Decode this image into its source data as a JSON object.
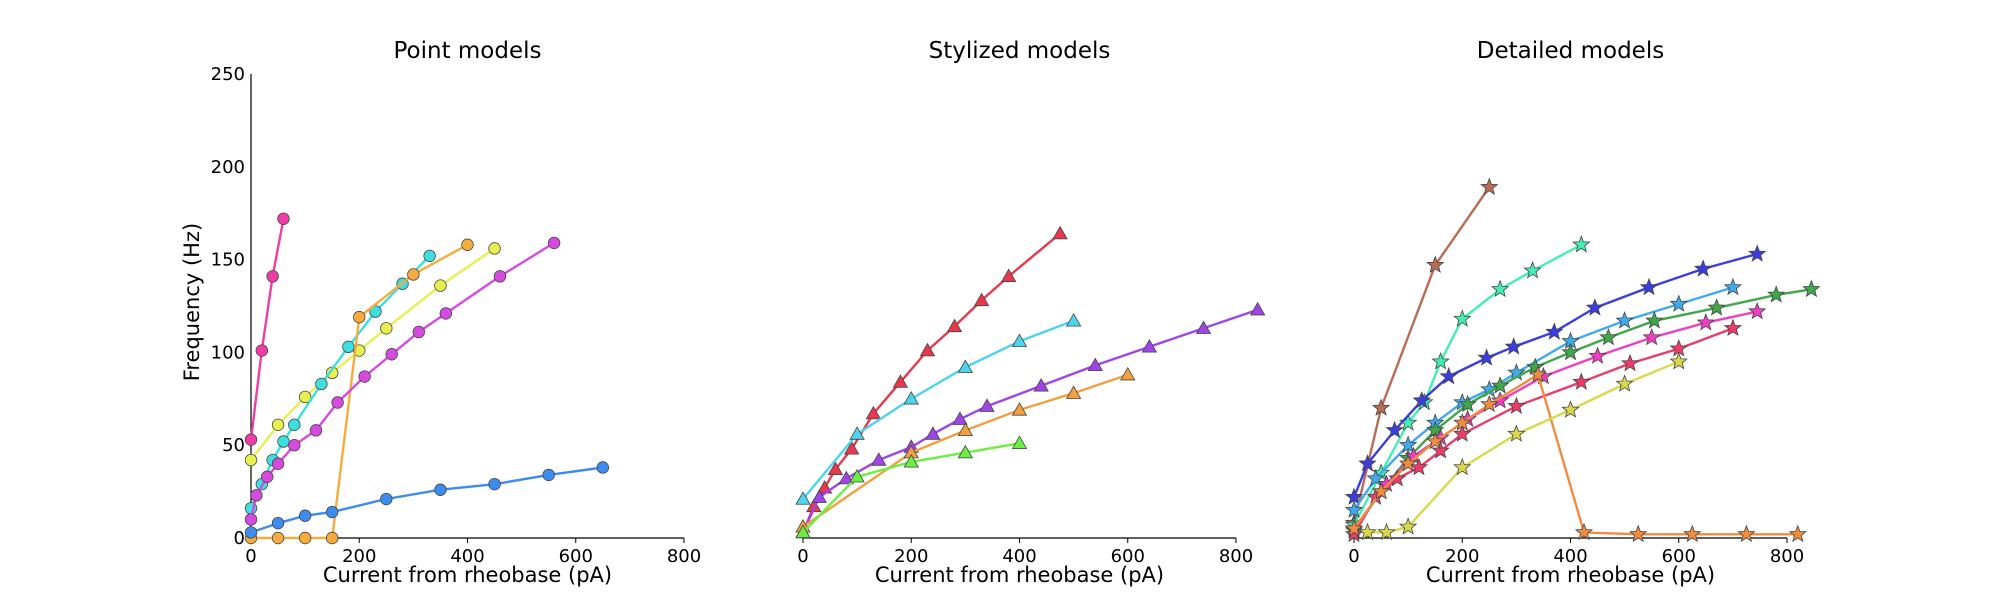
{
  "figure": {
    "ylabel": "Frequency (Hz)"
  },
  "chart_data": [
    {
      "type": "line",
      "title": "Point models",
      "xlabel": "Current from rheobase (pA)",
      "ylabel": "Frequency (Hz)",
      "xlim": [
        0,
        800
      ],
      "ylim": [
        0,
        250
      ],
      "xticks": [
        "0",
        "200",
        "400",
        "600",
        "800"
      ],
      "yticks": [
        "0",
        "50",
        "100",
        "150",
        "200",
        "250"
      ],
      "grid": false,
      "marker": "circle",
      "series": [
        {
          "color": "#f03ca6",
          "x": [
            0,
            20,
            40,
            60
          ],
          "y": [
            53,
            101,
            141,
            172
          ]
        },
        {
          "color": "#e8f050",
          "x": [
            0,
            50,
            100,
            150,
            200,
            250,
            350,
            450
          ],
          "y": [
            42,
            61,
            76,
            89,
            101,
            113,
            136,
            156
          ]
        },
        {
          "color": "#3ddede",
          "x": [
            0,
            20,
            40,
            60,
            80,
            130,
            180,
            230,
            280,
            330
          ],
          "y": [
            16,
            29,
            42,
            52,
            61,
            83,
            103,
            122,
            137,
            152
          ]
        },
        {
          "color": "#f5ac3d",
          "x": [
            0,
            50,
            100,
            150,
            200,
            300,
            400
          ],
          "y": [
            0,
            0,
            0,
            0,
            119,
            142,
            158
          ]
        },
        {
          "color": "#d64ae0",
          "x": [
            0,
            10,
            30,
            50,
            80,
            120,
            160,
            210,
            260,
            310,
            360,
            460,
            560
          ],
          "y": [
            10,
            23,
            33,
            40,
            50,
            58,
            73,
            87,
            99,
            111,
            121,
            141,
            159
          ]
        },
        {
          "color": "#3d8ced",
          "x": [
            0,
            50,
            100,
            150,
            250,
            350,
            450,
            550,
            650
          ],
          "y": [
            3,
            8,
            12,
            14,
            21,
            26,
            29,
            34,
            38
          ]
        }
      ]
    },
    {
      "type": "line",
      "title": "Stylized models",
      "xlabel": "Current from rheobase (pA)",
      "xlim": [
        0,
        800
      ],
      "ylim": [
        0,
        250
      ],
      "xticks": [
        "0",
        "200",
        "400",
        "600",
        "800"
      ],
      "grid": false,
      "marker": "triangle",
      "series": [
        {
          "color": "#e8384e",
          "x": [
            0,
            20,
            40,
            60,
            90,
            130,
            180,
            230,
            280,
            330,
            380,
            475
          ],
          "y": [
            3,
            17,
            27,
            37,
            48,
            67,
            84,
            101,
            114,
            128,
            141,
            164
          ]
        },
        {
          "color": "#4dd4ed",
          "x": [
            0,
            100,
            200,
            300,
            400,
            500
          ],
          "y": [
            21,
            56,
            75,
            92,
            106,
            117
          ]
        },
        {
          "color": "#a044e8",
          "x": [
            0,
            30,
            80,
            140,
            200,
            240,
            290,
            340,
            440,
            540,
            640,
            740,
            840
          ],
          "y": [
            3,
            22,
            32,
            42,
            49,
            56,
            64,
            71,
            82,
            93,
            103,
            113,
            123
          ]
        },
        {
          "color": "#f0a040",
          "x": [
            0,
            200,
            300,
            400,
            500,
            600
          ],
          "y": [
            6,
            46,
            58,
            69,
            78,
            88
          ]
        },
        {
          "color": "#6bef42",
          "x": [
            0,
            100,
            200,
            300,
            400
          ],
          "y": [
            3,
            33,
            41,
            46,
            51
          ]
        }
      ]
    },
    {
      "type": "line",
      "title": "Detailed models",
      "xlabel": "Current from rheobase (pA)",
      "xlim": [
        0,
        800
      ],
      "ylim": [
        0,
        250
      ],
      "xticks": [
        "0",
        "200",
        "400",
        "600",
        "800"
      ],
      "grid": false,
      "marker": "star",
      "series": [
        {
          "color": "#b86b55",
          "x": [
            0,
            50,
            150,
            250
          ],
          "y": [
            8,
            70,
            147,
            189
          ]
        },
        {
          "color": "#42efb0",
          "x": [
            0,
            50,
            100,
            130,
            160,
            200,
            270,
            330,
            420
          ],
          "y": [
            7,
            35,
            62,
            73,
            95,
            118,
            134,
            144,
            158
          ]
        },
        {
          "color": "#3b3ddf",
          "x": [
            0,
            25,
            75,
            125,
            175,
            245,
            295,
            370,
            445,
            545,
            645,
            745
          ],
          "y": [
            22,
            40,
            58,
            74,
            87,
            97,
            103,
            111,
            124,
            135,
            145,
            153
          ]
        },
        {
          "color": "#40aaed",
          "x": [
            0,
            40,
            100,
            150,
            200,
            250,
            300,
            400,
            500,
            600,
            700
          ],
          "y": [
            15,
            32,
            50,
            62,
            73,
            80,
            89,
            106,
            117,
            126,
            135
          ]
        },
        {
          "color": "#3ea84a",
          "x": [
            0,
            50,
            100,
            150,
            210,
            270,
            335,
            400,
            470,
            555,
            670,
            780,
            845
          ],
          "y": [
            4,
            25,
            43,
            58,
            72,
            82,
            92,
            100,
            108,
            117,
            124,
            131,
            134
          ]
        },
        {
          "color": "#f03ec4",
          "x": [
            0,
            60,
            110,
            160,
            210,
            270,
            350,
            450,
            550,
            650,
            745
          ],
          "y": [
            5,
            29,
            44,
            54,
            64,
            74,
            87,
            98,
            108,
            116,
            122
          ]
        },
        {
          "color": "#eb3c6a",
          "x": [
            0,
            40,
            80,
            120,
            160,
            200,
            300,
            420,
            510,
            600,
            700
          ],
          "y": [
            2,
            22,
            32,
            38,
            47,
            56,
            71,
            84,
            94,
            102,
            113
          ]
        },
        {
          "color": "#f08c40",
          "x": [
            0,
            50,
            100,
            150,
            200,
            250,
            340,
            425,
            525,
            625,
            725,
            820
          ],
          "y": [
            5,
            25,
            40,
            52,
            62,
            72,
            88,
            3,
            2,
            2,
            2,
            2
          ]
        },
        {
          "color": "#d8d84a",
          "x": [
            25,
            60,
            100,
            200,
            300,
            400,
            500,
            600
          ],
          "y": [
            3,
            3,
            6,
            38,
            56,
            69,
            83,
            95
          ]
        }
      ]
    }
  ]
}
